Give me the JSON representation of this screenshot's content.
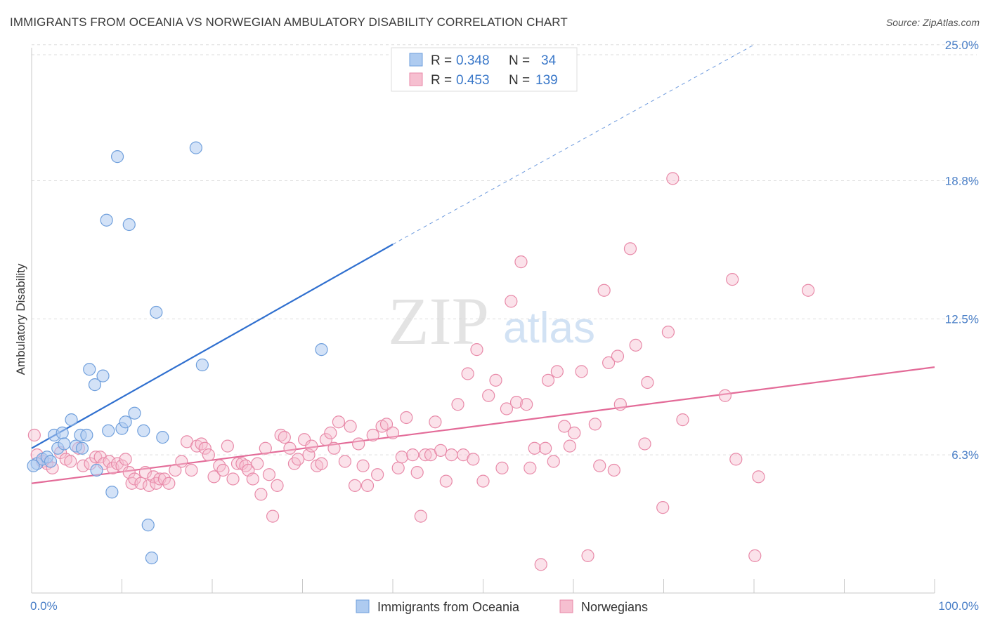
{
  "title": "IMMIGRANTS FROM OCEANIA VS NORWEGIAN AMBULATORY DISABILITY CORRELATION CHART",
  "source": "Source: ZipAtlas.com",
  "watermark": {
    "zip": "ZIP",
    "atlas": "atlas"
  },
  "colors": {
    "blue_fill": "#aecbf0",
    "blue_stroke": "#6f9fdc",
    "blue_line": "#2f6fcf",
    "pink_fill": "#f6bfd0",
    "pink_stroke": "#e889a8",
    "pink_line": "#e36b98",
    "tick_text": "#4a7fc7",
    "grid": "#dddddd"
  },
  "stats_legend": [
    {
      "r_label": "R =",
      "r_value": "0.348",
      "n_label": "N =",
      "n_value": "34"
    },
    {
      "r_label": "R =",
      "r_value": "0.453",
      "n_label": "N =",
      "n_value": "139"
    }
  ],
  "chart_data": {
    "type": "scatter",
    "title": "IMMIGRANTS FROM OCEANIA VS NORWEGIAN AMBULATORY DISABILITY CORRELATION CHART",
    "xlabel": "",
    "ylabel": "Ambulatory Disability",
    "xlim": [
      0,
      100
    ],
    "ylim": [
      0,
      25.6
    ],
    "x_tick_labels": [
      "0.0%",
      "100.0%"
    ],
    "y_ticks": [
      6.3,
      12.5,
      18.8,
      25.0
    ],
    "y_tick_labels": [
      "6.3%",
      "12.5%",
      "18.8%",
      "25.0%"
    ],
    "grid": true,
    "legend_position": "bottom-center",
    "series": [
      {
        "name": "Immigrants from Oceania",
        "color": "#6f9fdc",
        "points": [
          [
            0.6,
            5.9
          ],
          [
            1.2,
            6.1
          ],
          [
            1.7,
            6.2
          ],
          [
            2.1,
            6.0
          ],
          [
            2.5,
            7.2
          ],
          [
            2.9,
            6.6
          ],
          [
            3.4,
            7.3
          ],
          [
            3.6,
            6.8
          ],
          [
            4.4,
            7.9
          ],
          [
            4.9,
            6.7
          ],
          [
            5.4,
            7.2
          ],
          [
            5.6,
            6.6
          ],
          [
            6.1,
            7.2
          ],
          [
            6.4,
            10.2
          ],
          [
            7.0,
            9.5
          ],
          [
            7.2,
            5.6
          ],
          [
            7.9,
            9.9
          ],
          [
            8.3,
            17.0
          ],
          [
            8.5,
            7.4
          ],
          [
            8.9,
            4.6
          ],
          [
            9.5,
            19.9
          ],
          [
            10.0,
            7.5
          ],
          [
            10.4,
            7.8
          ],
          [
            10.8,
            16.8
          ],
          [
            11.4,
            8.2
          ],
          [
            12.4,
            7.4
          ],
          [
            12.9,
            3.1
          ],
          [
            13.3,
            1.6
          ],
          [
            13.8,
            12.8
          ],
          [
            14.5,
            7.1
          ],
          [
            18.2,
            20.3
          ],
          [
            18.9,
            10.4
          ],
          [
            32.1,
            11.1
          ],
          [
            0.2,
            5.8
          ]
        ]
      },
      {
        "name": "Norwegians",
        "color": "#e889a8",
        "points": [
          [
            0.3,
            7.2
          ],
          [
            0.6,
            6.3
          ],
          [
            1.2,
            6.0
          ],
          [
            1.7,
            5.9
          ],
          [
            2.3,
            5.7
          ],
          [
            3.2,
            6.4
          ],
          [
            3.8,
            6.1
          ],
          [
            4.3,
            6.0
          ],
          [
            5.2,
            6.6
          ],
          [
            5.7,
            5.8
          ],
          [
            6.5,
            5.9
          ],
          [
            7.1,
            6.2
          ],
          [
            7.6,
            6.2
          ],
          [
            8.0,
            5.9
          ],
          [
            8.6,
            6.0
          ],
          [
            9.0,
            5.7
          ],
          [
            9.5,
            5.9
          ],
          [
            10.0,
            5.8
          ],
          [
            10.4,
            6.1
          ],
          [
            10.8,
            5.5
          ],
          [
            11.1,
            5.0
          ],
          [
            11.4,
            5.2
          ],
          [
            12.1,
            5.0
          ],
          [
            12.6,
            5.5
          ],
          [
            13.0,
            4.9
          ],
          [
            13.5,
            5.3
          ],
          [
            13.8,
            5.0
          ],
          [
            14.2,
            5.2
          ],
          [
            14.7,
            5.2
          ],
          [
            15.2,
            5.0
          ],
          [
            15.9,
            5.6
          ],
          [
            16.6,
            6.0
          ],
          [
            17.2,
            6.9
          ],
          [
            17.7,
            5.6
          ],
          [
            18.3,
            6.7
          ],
          [
            18.8,
            6.8
          ],
          [
            19.2,
            6.6
          ],
          [
            19.6,
            6.3
          ],
          [
            20.2,
            5.3
          ],
          [
            20.8,
            5.8
          ],
          [
            21.2,
            5.6
          ],
          [
            21.7,
            6.7
          ],
          [
            22.3,
            5.2
          ],
          [
            22.8,
            5.9
          ],
          [
            23.3,
            5.9
          ],
          [
            23.7,
            5.8
          ],
          [
            24.0,
            5.6
          ],
          [
            24.5,
            5.2
          ],
          [
            25.0,
            5.9
          ],
          [
            25.4,
            4.5
          ],
          [
            25.9,
            6.6
          ],
          [
            26.3,
            5.4
          ],
          [
            26.7,
            3.5
          ],
          [
            27.2,
            4.9
          ],
          [
            27.6,
            7.2
          ],
          [
            28.0,
            7.1
          ],
          [
            28.6,
            6.6
          ],
          [
            29.1,
            5.9
          ],
          [
            29.5,
            6.1
          ],
          [
            30.2,
            7.0
          ],
          [
            30.7,
            6.3
          ],
          [
            31.0,
            6.7
          ],
          [
            31.6,
            5.8
          ],
          [
            32.1,
            5.9
          ],
          [
            32.6,
            7.0
          ],
          [
            33.1,
            7.3
          ],
          [
            33.5,
            6.6
          ],
          [
            34.0,
            7.8
          ],
          [
            34.7,
            6.0
          ],
          [
            35.3,
            7.6
          ],
          [
            35.8,
            4.9
          ],
          [
            36.2,
            6.8
          ],
          [
            36.7,
            5.8
          ],
          [
            37.2,
            4.9
          ],
          [
            37.8,
            7.2
          ],
          [
            38.3,
            5.4
          ],
          [
            38.8,
            7.6
          ],
          [
            39.3,
            7.7
          ],
          [
            40.0,
            7.3
          ],
          [
            40.6,
            5.7
          ],
          [
            41.0,
            6.2
          ],
          [
            41.5,
            8.0
          ],
          [
            42.2,
            6.3
          ],
          [
            42.7,
            5.5
          ],
          [
            43.1,
            3.5
          ],
          [
            43.6,
            6.3
          ],
          [
            44.2,
            6.3
          ],
          [
            44.7,
            7.8
          ],
          [
            45.3,
            6.5
          ],
          [
            45.9,
            5.1
          ],
          [
            46.5,
            6.3
          ],
          [
            47.2,
            8.6
          ],
          [
            47.8,
            6.3
          ],
          [
            48.3,
            10.0
          ],
          [
            48.9,
            6.1
          ],
          [
            49.3,
            11.1
          ],
          [
            50.0,
            5.1
          ],
          [
            50.6,
            9.0
          ],
          [
            51.4,
            9.7
          ],
          [
            52.1,
            5.7
          ],
          [
            52.6,
            8.4
          ],
          [
            53.1,
            13.3
          ],
          [
            53.7,
            8.7
          ],
          [
            54.2,
            15.1
          ],
          [
            54.8,
            8.6
          ],
          [
            55.2,
            5.7
          ],
          [
            55.7,
            6.6
          ],
          [
            56.4,
            1.3
          ],
          [
            56.9,
            6.6
          ],
          [
            57.2,
            9.7
          ],
          [
            57.8,
            6.0
          ],
          [
            58.2,
            10.1
          ],
          [
            59.0,
            7.6
          ],
          [
            59.6,
            6.7
          ],
          [
            60.1,
            7.3
          ],
          [
            60.9,
            10.1
          ],
          [
            61.6,
            1.7
          ],
          [
            62.4,
            7.7
          ],
          [
            62.9,
            5.8
          ],
          [
            63.4,
            13.8
          ],
          [
            63.9,
            10.5
          ],
          [
            64.5,
            5.6
          ],
          [
            64.9,
            10.8
          ],
          [
            65.2,
            8.6
          ],
          [
            66.3,
            15.7
          ],
          [
            66.9,
            11.3
          ],
          [
            67.9,
            6.8
          ],
          [
            68.2,
            9.6
          ],
          [
            69.9,
            3.9
          ],
          [
            70.5,
            11.9
          ],
          [
            71.0,
            18.9
          ],
          [
            72.1,
            7.9
          ],
          [
            76.8,
            9.0
          ],
          [
            77.6,
            14.3
          ],
          [
            78.0,
            6.1
          ],
          [
            80.1,
            1.7
          ],
          [
            80.5,
            5.3
          ],
          [
            86.0,
            13.8
          ]
        ]
      }
    ],
    "trendlines": [
      {
        "series": "Immigrants from Oceania",
        "solid": [
          [
            0,
            6.6
          ],
          [
            40,
            15.9
          ]
        ],
        "dashed": [
          [
            40,
            15.9
          ],
          [
            80,
            25.0
          ]
        ]
      },
      {
        "series": "Norwegians",
        "solid": [
          [
            0,
            5.0
          ],
          [
            100,
            10.3
          ]
        ]
      }
    ]
  },
  "legend_items": [
    {
      "label": "Immigrants from Oceania"
    },
    {
      "label": "Norwegians"
    }
  ]
}
